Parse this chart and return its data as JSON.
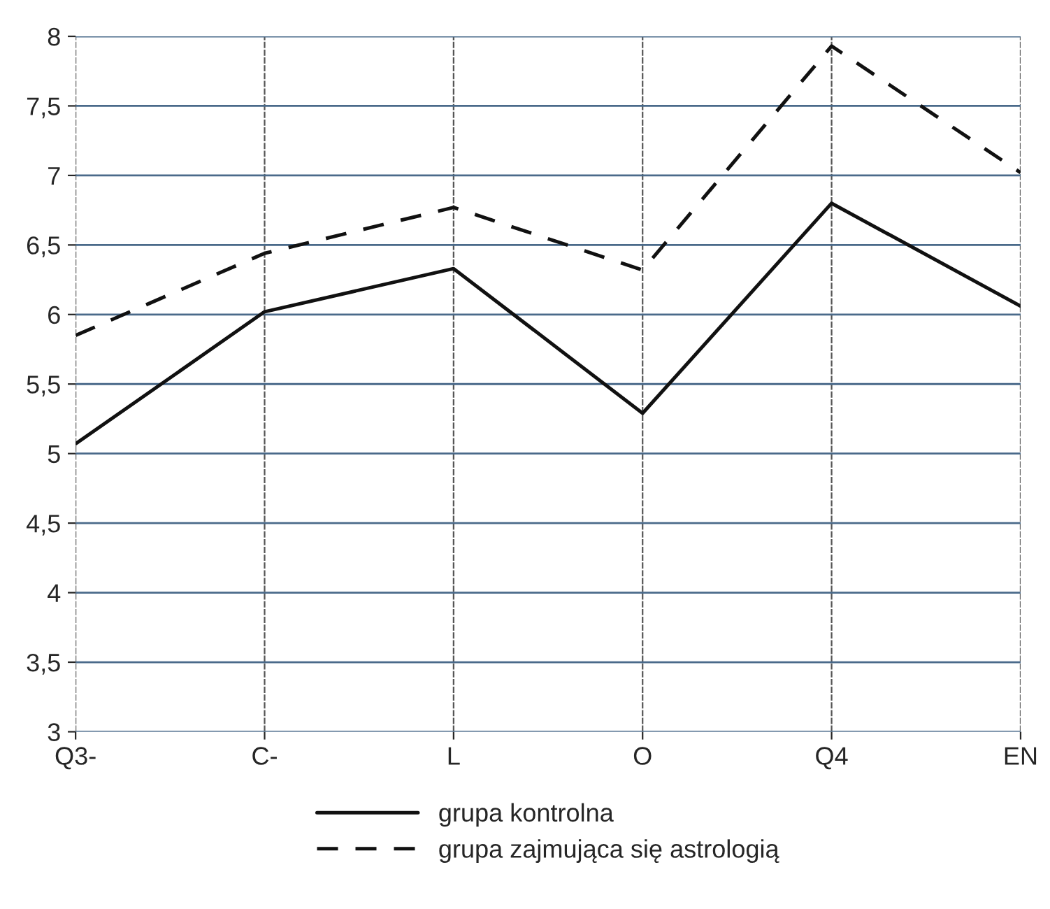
{
  "chart_data": {
    "type": "line",
    "categories": [
      "Q3-",
      "C-",
      "L",
      "O",
      "Q4",
      "EN"
    ],
    "series": [
      {
        "name": "grupa kontrolna",
        "color": "#111111",
        "line_style": "solid",
        "values": [
          5.07,
          6.02,
          6.33,
          5.29,
          6.8,
          6.06
        ]
      },
      {
        "name": "grupa zajmująca się astrologią",
        "color": "#111111",
        "line_style": "dashed",
        "values": [
          5.85,
          6.44,
          6.77,
          6.32,
          7.93,
          7.02
        ]
      }
    ],
    "ylim": [
      3,
      8
    ],
    "yticks": [
      3,
      {
        "value": 3.5,
        "label": "3,5"
      },
      4,
      {
        "value": 4.5,
        "label": "4,5"
      },
      5,
      {
        "value": 5.5,
        "label": "5,5"
      },
      6,
      {
        "value": 6.5,
        "label": "6,5"
      },
      7,
      {
        "value": 7.5,
        "label": "7,5"
      },
      8
    ],
    "grid": true,
    "legend": "bottom",
    "marker": "none"
  }
}
